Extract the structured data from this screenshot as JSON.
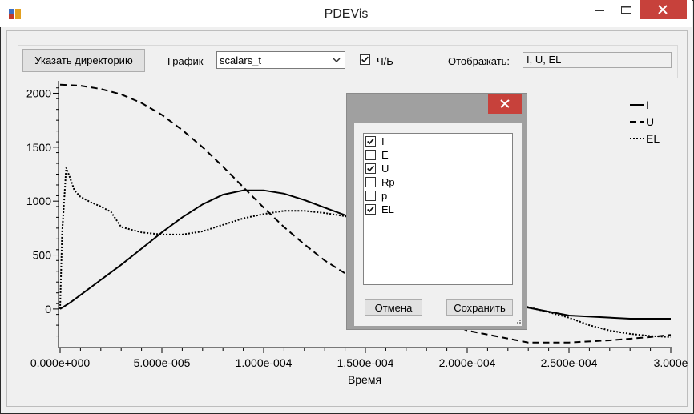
{
  "window": {
    "title": "PDEVis"
  },
  "toolbar": {
    "dir_button": "Указать директорию",
    "graph_label": "График",
    "graph_value": "scalars_t",
    "bw_label": "Ч/Б",
    "bw_checked": true,
    "display_label": "Отображать:",
    "display_value": "I, U, EL"
  },
  "dialog": {
    "items": [
      {
        "label": "I",
        "checked": true
      },
      {
        "label": "E",
        "checked": false
      },
      {
        "label": "U",
        "checked": true
      },
      {
        "label": "Rp",
        "checked": false
      },
      {
        "label": "p",
        "checked": false
      },
      {
        "label": "EL",
        "checked": true
      }
    ],
    "cancel_label": "Отмена",
    "save_label": "Сохранить"
  },
  "chart_data": {
    "type": "line",
    "xlabel": "Время",
    "xlim": [
      0,
      0.0003
    ],
    "ylim": [
      -320,
      2100
    ],
    "x_ticks": [
      {
        "value": 0,
        "label": "0.000e+000"
      },
      {
        "value": 5e-05,
        "label": "5.000e-005"
      },
      {
        "value": 0.0001,
        "label": "1.000e-004"
      },
      {
        "value": 0.00015,
        "label": "1.500e-004"
      },
      {
        "value": 0.0002,
        "label": "2.000e-004"
      },
      {
        "value": 0.00025,
        "label": "2.500e-004"
      },
      {
        "value": 0.0003,
        "label": "3.000e"
      }
    ],
    "y_ticks": [
      {
        "value": 2000,
        "label": "2000"
      },
      {
        "value": 1500,
        "label": "1500"
      },
      {
        "value": 1000,
        "label": "1000"
      },
      {
        "value": 500,
        "label": "500"
      },
      {
        "value": 0,
        "label": "0"
      }
    ],
    "legend_position": "top-right",
    "series": [
      {
        "name": "I",
        "style": "solid",
        "x": [
          0,
          5e-06,
          1e-05,
          2e-05,
          3e-05,
          4e-05,
          5e-05,
          6e-05,
          7e-05,
          8e-05,
          9e-05,
          0.0001,
          0.00011,
          0.00012,
          0.00013,
          0.00014,
          0.00015,
          0.00016,
          0.0002,
          0.00025,
          0.00028,
          0.0003
        ],
        "y": [
          0,
          60,
          130,
          270,
          410,
          560,
          710,
          850,
          970,
          1060,
          1100,
          1100,
          1070,
          1010,
          940,
          870,
          800,
          700,
          120,
          -60,
          -90,
          -90
        ]
      },
      {
        "name": "U",
        "style": "dashed",
        "x": [
          0,
          1e-05,
          2e-05,
          3e-05,
          4e-05,
          5e-05,
          6e-05,
          7e-05,
          8e-05,
          9e-05,
          0.0001,
          0.00011,
          0.00012,
          0.00013,
          0.00014,
          0.00015,
          0.00016,
          0.0002,
          0.00023,
          0.00025,
          0.00027,
          0.00029,
          0.0003
        ],
        "y": [
          2080,
          2070,
          2040,
          1990,
          1910,
          1800,
          1660,
          1500,
          1320,
          1130,
          940,
          760,
          600,
          450,
          330,
          220,
          120,
          -200,
          -310,
          -310,
          -290,
          -260,
          -240
        ]
      },
      {
        "name": "EL",
        "style": "dotted",
        "x": [
          0,
          1e-06,
          3e-06,
          5e-06,
          7e-06,
          1e-05,
          1.5e-05,
          2e-05,
          2.5e-05,
          3e-05,
          4e-05,
          5e-05,
          6e-05,
          7e-05,
          8e-05,
          9e-05,
          0.0001,
          0.00011,
          0.00012,
          0.00013,
          0.00014,
          0.00015,
          0.00016,
          0.0002,
          0.00024,
          0.00025,
          0.00026,
          0.00027,
          0.00028,
          0.00029,
          0.0003
        ],
        "y": [
          0,
          700,
          1310,
          1210,
          1100,
          1040,
          990,
          950,
          900,
          760,
          710,
          690,
          690,
          720,
          780,
          840,
          880,
          910,
          910,
          890,
          860,
          820,
          780,
          160,
          -30,
          -80,
          -150,
          -200,
          -230,
          -250,
          -260
        ]
      }
    ]
  }
}
